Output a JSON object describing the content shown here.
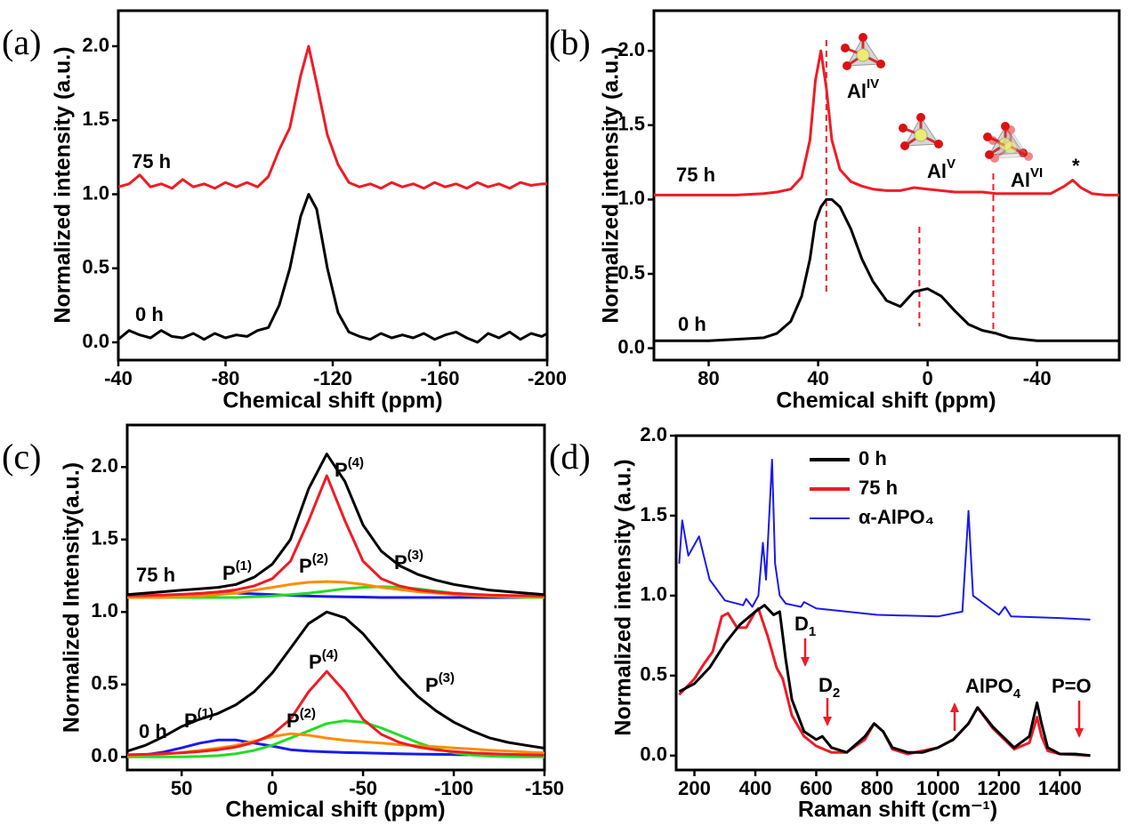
{
  "chart_data": [
    {
      "type": "line",
      "panel_label": "(a)",
      "xlabel": "Chemical shift (ppm)",
      "ylabel": "Normalized intensity (a.u.)",
      "xlim": [
        -40,
        -200
      ],
      "ylim": [
        -0.12,
        2.24
      ],
      "xticks": [
        -40,
        -80,
        -120,
        -160,
        -200
      ],
      "yticks": [
        {
          "value": 0,
          "label": "0.0"
        },
        0.5,
        {
          "value": 1,
          "label": "1.0"
        },
        1.5,
        {
          "value": 2,
          "label": "2.0"
        }
      ],
      "x": [
        -40,
        -44,
        -48,
        -52,
        -56,
        -60,
        -64,
        -68,
        -72,
        -76,
        -80,
        -84,
        -88,
        -92,
        -96,
        -100,
        -104,
        -108,
        -111,
        -114,
        -118,
        -122,
        -126,
        -130,
        -134,
        -138,
        -142,
        -146,
        -150,
        -154,
        -158,
        -162,
        -166,
        -170,
        -174,
        -178,
        -182,
        -186,
        -190,
        -194,
        -198,
        -200
      ],
      "series": [
        {
          "name": "75 h",
          "color": "#ee1c25",
          "values": [
            1.05,
            1.07,
            1.13,
            1.05,
            1.07,
            1.04,
            1.1,
            1.05,
            1.07,
            1.04,
            1.08,
            1.05,
            1.08,
            1.05,
            1.12,
            1.3,
            1.45,
            1.8,
            2.0,
            1.75,
            1.4,
            1.2,
            1.08,
            1.05,
            1.07,
            1.04,
            1.08,
            1.05,
            1.07,
            1.04,
            1.08,
            1.05,
            1.07,
            1.04,
            1.08,
            1.05,
            1.07,
            1.04,
            1.08,
            1.06,
            1.07,
            1.07
          ]
        },
        {
          "name": "0 h",
          "color": "#000000",
          "values": [
            0.02,
            0.08,
            0.05,
            0.03,
            0.08,
            0.04,
            0.03,
            0.06,
            0.02,
            0.06,
            0.03,
            0.05,
            0.04,
            0.08,
            0.1,
            0.25,
            0.5,
            0.85,
            1.0,
            0.9,
            0.5,
            0.2,
            0.07,
            0.04,
            0.02,
            0.06,
            0.03,
            0.05,
            0.03,
            0.06,
            0.02,
            0.05,
            0.07,
            0.03,
            0.0,
            0.06,
            0.03,
            0.07,
            0.02,
            0.06,
            0.04,
            0.06
          ]
        }
      ]
    },
    {
      "type": "line",
      "panel_label": "(b)",
      "xlabel": "Chemical shift (ppm)",
      "ylabel": "Normalized intensity (a.u.)",
      "xlim": [
        100,
        -70
      ],
      "ylim": [
        -0.08,
        2.27
      ],
      "xticks": [
        80,
        40,
        0,
        -40
      ],
      "yticks": [
        {
          "value": 0,
          "label": "0.0"
        },
        0.5,
        {
          "value": 1,
          "label": "1.0"
        },
        1.5,
        {
          "value": 2,
          "label": "2.0"
        }
      ],
      "x": [
        100,
        90,
        80,
        70,
        60,
        55,
        50,
        46,
        43,
        41,
        39,
        37,
        35,
        32,
        28,
        24,
        20,
        15,
        10,
        5,
        0,
        -5,
        -10,
        -15,
        -20,
        -25,
        -30,
        -35,
        -40,
        -45,
        -50,
        -53,
        -56,
        -60,
        -65,
        -70
      ],
      "series": [
        {
          "name": "75 h",
          "color": "#ee1c25",
          "values": [
            1.03,
            1.03,
            1.03,
            1.03,
            1.04,
            1.05,
            1.07,
            1.15,
            1.4,
            1.8,
            2.0,
            1.75,
            1.4,
            1.2,
            1.12,
            1.09,
            1.07,
            1.06,
            1.06,
            1.08,
            1.07,
            1.06,
            1.05,
            1.05,
            1.05,
            1.04,
            1.04,
            1.04,
            1.04,
            1.04,
            1.09,
            1.13,
            1.08,
            1.04,
            1.03,
            1.03
          ]
        },
        {
          "name": "0 h",
          "color": "#000000",
          "values": [
            0.05,
            0.05,
            0.05,
            0.06,
            0.07,
            0.1,
            0.18,
            0.35,
            0.6,
            0.85,
            0.95,
            1.0,
            1.0,
            0.95,
            0.8,
            0.6,
            0.45,
            0.32,
            0.28,
            0.38,
            0.4,
            0.35,
            0.25,
            0.16,
            0.12,
            0.1,
            0.07,
            0.06,
            0.05,
            0.05,
            0.05,
            0.05,
            0.05,
            0.05,
            0.05,
            0.05
          ]
        }
      ],
      "reference_lines": [
        37,
        3,
        -24
      ],
      "annotations": [
        {
          "text": "Al",
          "sup": "IV"
        },
        {
          "text": "Al",
          "sup": "V"
        },
        {
          "text": "Al",
          "sup": "VI"
        },
        {
          "text": "*"
        }
      ]
    },
    {
      "type": "line",
      "panel_label": "(c)",
      "xlabel": "Chemical shift (ppm)",
      "ylabel": "Normalized Intensity(a.u.)",
      "xlim": [
        80,
        -150
      ],
      "ylim": [
        -0.09,
        2.29
      ],
      "xticks": [
        50,
        0,
        -50,
        -100,
        -150
      ],
      "yticks": [
        {
          "value": 0,
          "label": "0.0"
        },
        0.5,
        {
          "value": 1,
          "label": "1.0"
        },
        1.5,
        {
          "value": 2,
          "label": "2.0"
        }
      ],
      "x": [
        80,
        70,
        60,
        50,
        40,
        30,
        20,
        10,
        0,
        -10,
        -20,
        -30,
        -40,
        -50,
        -60,
        -70,
        -80,
        -90,
        -100,
        -110,
        -120,
        -130,
        -140,
        -150
      ],
      "series": [
        {
          "name": "75 h",
          "color": "#000000",
          "values": [
            1.12,
            1.13,
            1.14,
            1.15,
            1.16,
            1.17,
            1.19,
            1.24,
            1.33,
            1.5,
            1.85,
            2.09,
            1.9,
            1.6,
            1.42,
            1.32,
            1.26,
            1.22,
            1.19,
            1.17,
            1.15,
            1.14,
            1.13,
            1.12
          ]
        },
        {
          "color": "#ee1c25",
          "values": [
            1.112,
            1.114,
            1.117,
            1.122,
            1.128,
            1.138,
            1.153,
            1.18,
            1.23,
            1.35,
            1.63,
            1.94,
            1.63,
            1.35,
            1.23,
            1.18,
            1.153,
            1.138,
            1.128,
            1.122,
            1.117,
            1.114,
            1.112,
            1.11
          ]
        },
        {
          "color": "#ff8c00",
          "values": [
            1.1,
            1.1,
            1.1,
            1.105,
            1.11,
            1.12,
            1.13,
            1.15,
            1.17,
            1.19,
            1.205,
            1.21,
            1.205,
            1.19,
            1.17,
            1.155,
            1.14,
            1.13,
            1.12,
            1.115,
            1.11,
            1.107,
            1.105,
            1.103
          ]
        },
        {
          "color": "#22dd22",
          "values": [
            1.1,
            1.1,
            1.1,
            1.1,
            1.1,
            1.1,
            1.1,
            1.105,
            1.11,
            1.12,
            1.13,
            1.145,
            1.16,
            1.17,
            1.175,
            1.17,
            1.16,
            1.145,
            1.13,
            1.12,
            1.11,
            1.105,
            1.1,
            1.1
          ]
        },
        {
          "color": "#1a1aee",
          "values": [
            1.105,
            1.11,
            1.115,
            1.12,
            1.125,
            1.13,
            1.13,
            1.125,
            1.12,
            1.115,
            1.11,
            1.107,
            1.105,
            1.103,
            1.1,
            1.1,
            1.1,
            1.1,
            1.1,
            1.1,
            1.1,
            1.1,
            1.1,
            1.1
          ]
        },
        {
          "name": "0 h",
          "color": "#000000",
          "values": [
            0.04,
            0.08,
            0.14,
            0.21,
            0.26,
            0.3,
            0.36,
            0.45,
            0.58,
            0.75,
            0.92,
            1.0,
            0.96,
            0.85,
            0.7,
            0.55,
            0.42,
            0.32,
            0.24,
            0.18,
            0.13,
            0.1,
            0.08,
            0.06
          ]
        },
        {
          "color": "#ee1c25",
          "values": [
            0.015,
            0.018,
            0.023,
            0.028,
            0.037,
            0.049,
            0.068,
            0.1,
            0.156,
            0.26,
            0.45,
            0.59,
            0.45,
            0.26,
            0.156,
            0.1,
            0.068,
            0.049,
            0.037,
            0.028,
            0.023,
            0.018,
            0.015,
            0.012
          ]
        },
        {
          "color": "#ff8c00",
          "values": [
            0.01,
            0.015,
            0.02,
            0.03,
            0.045,
            0.06,
            0.08,
            0.11,
            0.14,
            0.16,
            0.15,
            0.13,
            0.115,
            0.105,
            0.095,
            0.085,
            0.077,
            0.07,
            0.062,
            0.055,
            0.047,
            0.04,
            0.033,
            0.027
          ]
        },
        {
          "color": "#22dd22",
          "values": [
            0,
            0,
            0.001,
            0.001,
            0.003,
            0.009,
            0.022,
            0.045,
            0.081,
            0.13,
            0.18,
            0.23,
            0.25,
            0.24,
            0.2,
            0.15,
            0.1,
            0.058,
            0.029,
            0.013,
            0.005,
            0.002,
            0.001,
            0
          ]
        },
        {
          "color": "#1a1aee",
          "values": [
            0.005,
            0.015,
            0.034,
            0.063,
            0.095,
            0.117,
            0.117,
            0.095,
            0.075,
            0.05,
            0.04,
            0.035,
            0.03,
            0.028,
            0.025,
            0.022,
            0.02,
            0.018,
            0.016,
            0.014,
            0.012,
            0.011,
            0.01,
            0.01
          ]
        }
      ],
      "annotations": [
        {
          "text": "P",
          "sup": "(4)",
          "color": "#ee1c25"
        },
        {
          "text": "P",
          "sup": "(2)",
          "color": "#ff8c00"
        },
        {
          "text": "P",
          "sup": "(3)",
          "color": "#22dd22"
        },
        {
          "text": "P",
          "sup": "(1)",
          "color": "#1a1aee"
        },
        {
          "text": "P",
          "sup": "(4)",
          "color": "#ee1c25"
        },
        {
          "text": "P",
          "sup": "(2)",
          "color": "#ff8c00"
        },
        {
          "text": "P",
          "sup": "(3)",
          "color": "#22dd22"
        },
        {
          "text": "P",
          "sup": "(1)",
          "color": "#1a1aee"
        }
      ]
    },
    {
      "type": "line",
      "panel_label": "(d)",
      "xlabel": "Raman shift (cm⁻¹)",
      "ylabel": "Normalized intensity (a.u.)",
      "xlim": [
        140,
        1595
      ],
      "ylim": [
        -0.09,
        2.0
      ],
      "xticks": [
        200,
        400,
        600,
        800,
        1000,
        1200,
        1400
      ],
      "yticks": [
        {
          "value": 0,
          "label": "0.0"
        },
        0.5,
        {
          "value": 1,
          "label": "1.0"
        },
        1.5,
        {
          "value": 2,
          "label": "2.0"
        }
      ],
      "series": [
        {
          "name": "0 h",
          "color": "#000000",
          "x": [
            150,
            200,
            250,
            300,
            350,
            400,
            430,
            460,
            480,
            500,
            520,
            560,
            600,
            620,
            650,
            700,
            760,
            790,
            820,
            850,
            900,
            950,
            1000,
            1050,
            1100,
            1130,
            1180,
            1250,
            1300,
            1325,
            1340,
            1360,
            1400,
            1450,
            1500
          ],
          "values": [
            0.4,
            0.45,
            0.55,
            0.7,
            0.82,
            0.9,
            0.94,
            0.88,
            0.9,
            0.6,
            0.35,
            0.15,
            0.1,
            0.12,
            0.05,
            0.02,
            0.12,
            0.2,
            0.15,
            0.05,
            0.02,
            0.02,
            0.05,
            0.1,
            0.2,
            0.3,
            0.18,
            0.05,
            0.12,
            0.33,
            0.2,
            0.05,
            0.01,
            0.01,
            0.0
          ]
        },
        {
          "name": "75 h",
          "color": "#ee1c25",
          "x": [
            150,
            200,
            230,
            260,
            290,
            310,
            340,
            370,
            400,
            410,
            440,
            470,
            490,
            520,
            560,
            600,
            650,
            700,
            760,
            790,
            820,
            850,
            900,
            1000,
            1050,
            1100,
            1130,
            1180,
            1250,
            1300,
            1325,
            1340,
            1360,
            1400,
            1500
          ],
          "values": [
            0.38,
            0.48,
            0.57,
            0.65,
            0.87,
            0.89,
            0.8,
            0.8,
            0.9,
            0.92,
            0.75,
            0.55,
            0.48,
            0.25,
            0.12,
            0.06,
            0.02,
            0.02,
            0.1,
            0.2,
            0.15,
            0.04,
            0.01,
            0.05,
            0.1,
            0.2,
            0.3,
            0.17,
            0.04,
            0.08,
            0.24,
            0.12,
            0.03,
            0.01,
            0.0
          ]
        },
        {
          "name": "α-AlPO₄",
          "color": "#1a1aee",
          "x": [
            150,
            160,
            180,
            215,
            250,
            300,
            360,
            370,
            390,
            410,
            425,
            435,
            455,
            465,
            480,
            500,
            550,
            560,
            600,
            800,
            1000,
            1080,
            1100,
            1115,
            1200,
            1220,
            1240,
            1400,
            1500
          ],
          "values": [
            1.2,
            1.47,
            1.25,
            1.37,
            1.1,
            0.97,
            0.94,
            0.98,
            0.93,
            1.0,
            1.33,
            1.1,
            1.85,
            1.2,
            1.0,
            0.95,
            0.93,
            0.96,
            0.92,
            0.88,
            0.87,
            0.9,
            1.53,
            1.0,
            0.88,
            0.93,
            0.87,
            0.86,
            0.85
          ]
        }
      ],
      "annotations": [
        {
          "text": "D",
          "sub": "1"
        },
        {
          "text": "D",
          "sub": "2"
        },
        {
          "text": "AlPO",
          "sub": "4"
        },
        {
          "text": "P=O"
        }
      ]
    }
  ]
}
